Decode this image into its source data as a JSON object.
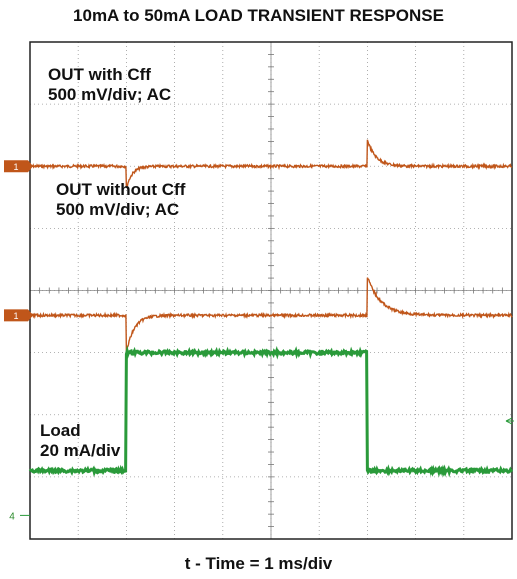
{
  "chart_data": {
    "type": "line",
    "title": "10mA to 50mA LOAD TRANSIENT RESPONSE",
    "xlabel": "t - Time = 1 ms/div",
    "x_unit": "ms",
    "xlim": [
      0,
      10
    ],
    "grid": true,
    "grid_divisions": {
      "x": 10,
      "y": 8
    },
    "load_step": {
      "rise_ms": 2.0,
      "fall_ms": 7.0
    },
    "channel_markers": [
      "1",
      "1",
      "4"
    ],
    "series": [
      {
        "annotation_lines": [
          "OUT with Cff",
          "500 mV/div; AC"
        ],
        "color": "#c0561a",
        "scale": "500 mV/div",
        "coupling": "AC",
        "baseline_div": 6.0,
        "undershoot_at_rise_div": 0.35,
        "overshoot_at_fall_div": 0.42
      },
      {
        "annotation_lines": [
          "OUT without Cff",
          "500 mV/div; AC"
        ],
        "color": "#c0561a",
        "scale": "500 mV/div",
        "coupling": "AC",
        "baseline_div": 3.6,
        "undershoot_at_rise_div": 0.6,
        "overshoot_at_fall_div": 0.62
      },
      {
        "annotation_lines": [
          "Load",
          "20 mA/div"
        ],
        "color": "#2a9a3a",
        "scale": "20 mA/div",
        "low_mA": 10,
        "high_mA": 50
      }
    ]
  }
}
